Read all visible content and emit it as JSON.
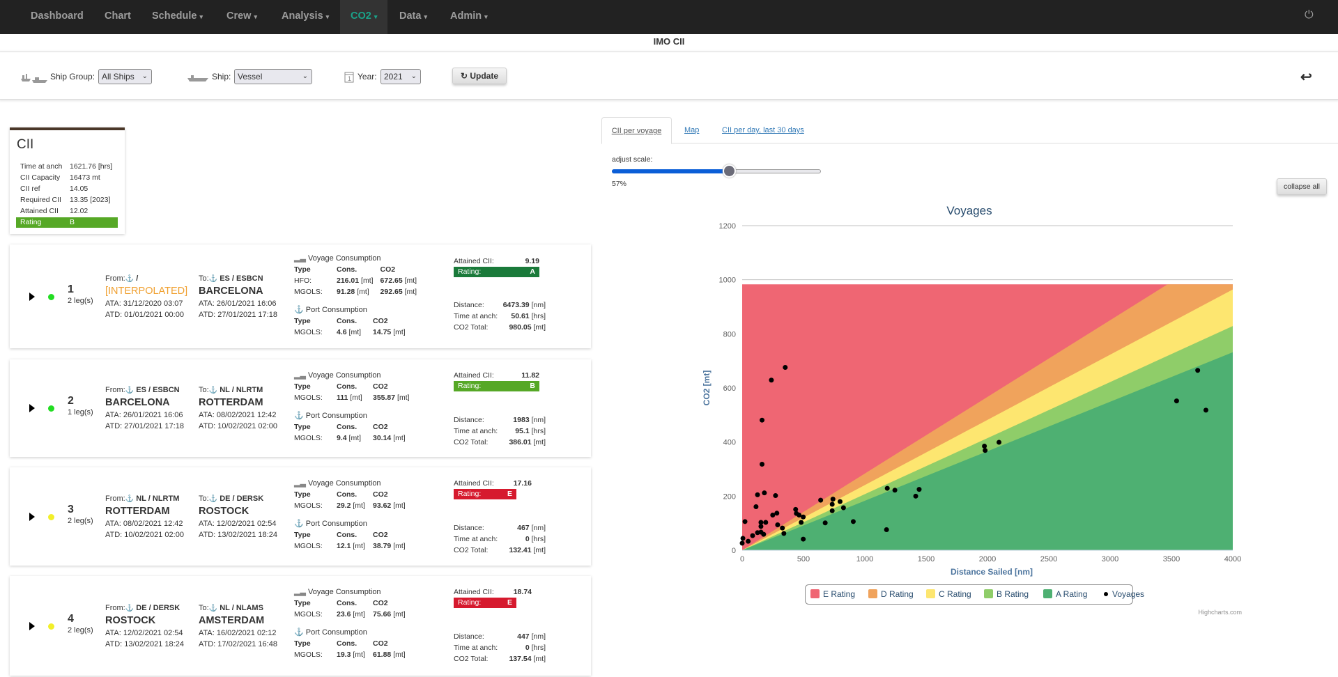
{
  "nav": {
    "items": [
      {
        "label": "Dashboard",
        "dropdown": false
      },
      {
        "label": "Chart",
        "dropdown": false
      },
      {
        "label": "Schedule",
        "dropdown": true
      },
      {
        "label": "Crew",
        "dropdown": true
      },
      {
        "label": "Analysis",
        "dropdown": true
      },
      {
        "label": "CO2",
        "dropdown": true,
        "active": true
      },
      {
        "label": "Data",
        "dropdown": true
      },
      {
        "label": "Admin",
        "dropdown": true
      }
    ],
    "caret": "▾",
    "power_icon": "⏻",
    "active_color": "#1aa38a"
  },
  "page_title": "IMO CII",
  "filters": {
    "ship_group_label": "Ship Group:",
    "ship_group_value": "All Ships",
    "ship_label": "Ship:",
    "ship_value": "Vessel",
    "year_label": "Year:",
    "year_value": "2021",
    "update_label": "Update",
    "refresh_icon": "↻",
    "back_icon": "↩",
    "chevron": "⌄"
  },
  "cii": {
    "title": "CII",
    "rows": [
      {
        "label": "Time at anch",
        "value": "1621.76 [hrs]"
      },
      {
        "label": "CII Capacity",
        "value": "16473 mt"
      },
      {
        "label": "CII ref",
        "value": "14.05"
      },
      {
        "label": "Required CII",
        "value": "13.35 [2023]"
      },
      {
        "label": "Attained CII",
        "value": "12.02"
      }
    ],
    "rating_label": "Rating",
    "rating_value": "B"
  },
  "voyages": [
    {
      "number": "1",
      "legs": "2 leg(s)",
      "status_color": "#22dd22",
      "from_label": "From:",
      "from_code": " /",
      "from_name": "[INTERPOLATED]",
      "from_interpolated": true,
      "from_ata": "ATA: 31/12/2020 03:07",
      "from_atd": "ATD: 01/01/2021 00:00",
      "to_label": "To:",
      "to_code": " ES / ESBCN",
      "to_name": "BARCELONA",
      "to_ata": "ATA: 26/01/2021 16:06",
      "to_atd": "ATD: 27/01/2021 17:18",
      "voyage_header": "Voyage Consumption",
      "voyage_rows": [
        {
          "type": "HFO:",
          "cons": "216.01",
          "co2": "672.65"
        },
        {
          "type": "MGOLS:",
          "cons": "91.28",
          "co2": "292.65"
        }
      ],
      "port_header": "Port Consumption",
      "port_rows": [
        {
          "type": "MGOLS:",
          "cons": "4.6",
          "co2": "14.75"
        }
      ],
      "attained_label": "Attained CII:",
      "attained": "9.19",
      "rating_label": "Rating:",
      "rating": "A",
      "rating_color": "#1a7a3a",
      "distance_label": "Distance:",
      "distance": "6473.39",
      "distance_unit": "[nm]",
      "anch_label": "Time at anch:",
      "anch": "50.61",
      "anch_unit": "[hrs]",
      "co2_total_label": "CO2 Total:",
      "co2_total": "980.05",
      "co2_unit": "[mt]"
    },
    {
      "number": "2",
      "legs": "1 leg(s)",
      "status_color": "#22dd22",
      "from_label": "From:",
      "from_code": " ES / ESBCN",
      "from_name": "BARCELONA",
      "from_interpolated": false,
      "from_ata": "ATA: 26/01/2021 16:06",
      "from_atd": "ATD: 27/01/2021 17:18",
      "to_label": "To:",
      "to_code": " NL / NLRTM",
      "to_name": "ROTTERDAM",
      "to_ata": "ATA: 08/02/2021 12:42",
      "to_atd": "ATD: 10/02/2021 02:00",
      "voyage_header": "Voyage Consumption",
      "voyage_rows": [
        {
          "type": "MGOLS:",
          "cons": "111",
          "co2": "355.87"
        }
      ],
      "port_header": "Port Consumption",
      "port_rows": [
        {
          "type": "MGOLS:",
          "cons": "9.4",
          "co2": "30.14"
        }
      ],
      "attained_label": "Attained CII:",
      "attained": "11.82",
      "rating_label": "Rating:",
      "rating": "B",
      "rating_color": "#56a826",
      "distance_label": "Distance:",
      "distance": "1983",
      "distance_unit": "[nm]",
      "anch_label": "Time at anch:",
      "anch": "95.1",
      "anch_unit": "[hrs]",
      "co2_total_label": "CO2 Total:",
      "co2_total": "386.01",
      "co2_unit": "[mt]"
    },
    {
      "number": "3",
      "legs": "2 leg(s)",
      "status_color": "#f2ef2a",
      "from_label": "From:",
      "from_code": " NL / NLRTM",
      "from_name": "ROTTERDAM",
      "from_interpolated": false,
      "from_ata": "ATA: 08/02/2021 12:42",
      "from_atd": "ATD: 10/02/2021 02:00",
      "to_label": "To:",
      "to_code": " DE / DERSK",
      "to_name": "ROSTOCK",
      "to_ata": "ATA: 12/02/2021 02:54",
      "to_atd": "ATD: 13/02/2021 18:24",
      "voyage_header": "Voyage Consumption",
      "voyage_rows": [
        {
          "type": "MGOLS:",
          "cons": "29.2",
          "co2": "93.62"
        }
      ],
      "port_header": "Port Consumption",
      "port_rows": [
        {
          "type": "MGOLS:",
          "cons": "12.1",
          "co2": "38.79"
        }
      ],
      "attained_label": "Attained CII:",
      "attained": "17.16",
      "rating_label": "Rating:",
      "rating": "E",
      "rating_color": "#d61a2e",
      "distance_label": "Distance:",
      "distance": "467",
      "distance_unit": "[nm]",
      "anch_label": "Time at anch:",
      "anch": "0",
      "anch_unit": "[hrs]",
      "co2_total_label": "CO2 Total:",
      "co2_total": "132.41",
      "co2_unit": "[mt]"
    },
    {
      "number": "4",
      "legs": "2 leg(s)",
      "status_color": "#f2ef2a",
      "from_label": "From:",
      "from_code": " DE / DERSK",
      "from_name": "ROSTOCK",
      "from_interpolated": false,
      "from_ata": "ATA: 12/02/2021 02:54",
      "from_atd": "ATD: 13/02/2021 18:24",
      "to_label": "To:",
      "to_code": " NL / NLAMS",
      "to_name": "AMSTERDAM",
      "to_ata": "ATA: 16/02/2021 02:12",
      "to_atd": "ATD: 17/02/2021 16:48",
      "voyage_header": "Voyage Consumption",
      "voyage_rows": [
        {
          "type": "MGOLS:",
          "cons": "23.6",
          "co2": "75.66"
        }
      ],
      "port_header": "Port Consumption",
      "port_rows": [
        {
          "type": "MGOLS:",
          "cons": "19.3",
          "co2": "61.88"
        }
      ],
      "attained_label": "Attained CII:",
      "attained": "18.74",
      "rating_label": "Rating:",
      "rating": "E",
      "rating_color": "#d61a2e",
      "distance_label": "Distance:",
      "distance": "447",
      "distance_unit": "[nm]",
      "anch_label": "Time at anch:",
      "anch": "0",
      "anch_unit": "[hrs]",
      "co2_total_label": "CO2 Total:",
      "co2_total": "137.54",
      "co2_unit": "[mt]"
    }
  ],
  "table_headers": {
    "type": "Type",
    "cons": "Cons.",
    "co2": "CO2",
    "unit": "[mt]"
  },
  "tabs": [
    {
      "label": "CII per voyage",
      "active": true
    },
    {
      "label": "Map"
    },
    {
      "label": "CII per day, last 30 days"
    }
  ],
  "scale": {
    "label": "adjust scale:",
    "value_text": "57%",
    "value": 57
  },
  "collapse_label": "collapse all",
  "credits": "Highcharts.com",
  "chart_data": {
    "type": "scatter",
    "title": "Voyages",
    "xlabel": "Distance Sailed [nm]",
    "ylabel": "CO2 [mt]",
    "xlim": [
      0,
      4000
    ],
    "ylim": [
      0,
      1200
    ],
    "x_ticks": [
      0,
      500,
      1000,
      1500,
      2000,
      2500,
      3000,
      3500,
      4000
    ],
    "y_ticks": [
      0,
      200,
      400,
      600,
      800,
      1000,
      1200
    ],
    "legend_position": "bottom",
    "bands_area_top_co2": 983,
    "bands": [
      {
        "name": "E Rating",
        "color": "#ef6673",
        "upper_co2_at_4000nm": null
      },
      {
        "name": "D Rating",
        "color": "#f0a35c",
        "upper_co2_at_4000nm": 1134
      },
      {
        "name": "C Rating",
        "color": "#fde670",
        "upper_co2_at_4000nm": 964
      },
      {
        "name": "B Rating",
        "color": "#8fcd69",
        "upper_co2_at_4000nm": 829
      },
      {
        "name": "A Rating",
        "color": "#4eb072",
        "upper_co2_at_4000nm": 732
      }
    ],
    "series": [
      {
        "name": "Voyages",
        "color": "#000000",
        "points": [
          [
            0,
            26
          ],
          [
            6,
            44
          ],
          [
            23,
            106
          ],
          [
            49,
            33
          ],
          [
            85,
            54
          ],
          [
            113,
            161
          ],
          [
            125,
            205
          ],
          [
            125,
            65
          ],
          [
            153,
            103
          ],
          [
            153,
            88
          ],
          [
            153,
            67
          ],
          [
            162,
            481
          ],
          [
            162,
            318
          ],
          [
            175,
            59
          ],
          [
            181,
            212
          ],
          [
            192,
            103
          ],
          [
            238,
            629
          ],
          [
            249,
            130
          ],
          [
            272,
            202
          ],
          [
            283,
            137
          ],
          [
            289,
            94
          ],
          [
            328,
            82
          ],
          [
            340,
            62
          ],
          [
            351,
            676
          ],
          [
            436,
            151
          ],
          [
            442,
            136
          ],
          [
            464,
            130
          ],
          [
            481,
            103
          ],
          [
            498,
            123
          ],
          [
            498,
            41
          ],
          [
            640,
            185
          ],
          [
            677,
            101
          ],
          [
            734,
            170
          ],
          [
            734,
            146
          ],
          [
            740,
            189
          ],
          [
            798,
            180
          ],
          [
            826,
            157
          ],
          [
            906,
            106
          ],
          [
            1177,
            76
          ],
          [
            1183,
            229
          ],
          [
            1245,
            222
          ],
          [
            1415,
            200
          ],
          [
            1443,
            225
          ],
          [
            1975,
            385
          ],
          [
            1981,
            369
          ],
          [
            2094,
            399
          ],
          [
            3542,
            552
          ],
          [
            3714,
            665
          ],
          [
            3781,
            518
          ]
        ]
      }
    ]
  }
}
